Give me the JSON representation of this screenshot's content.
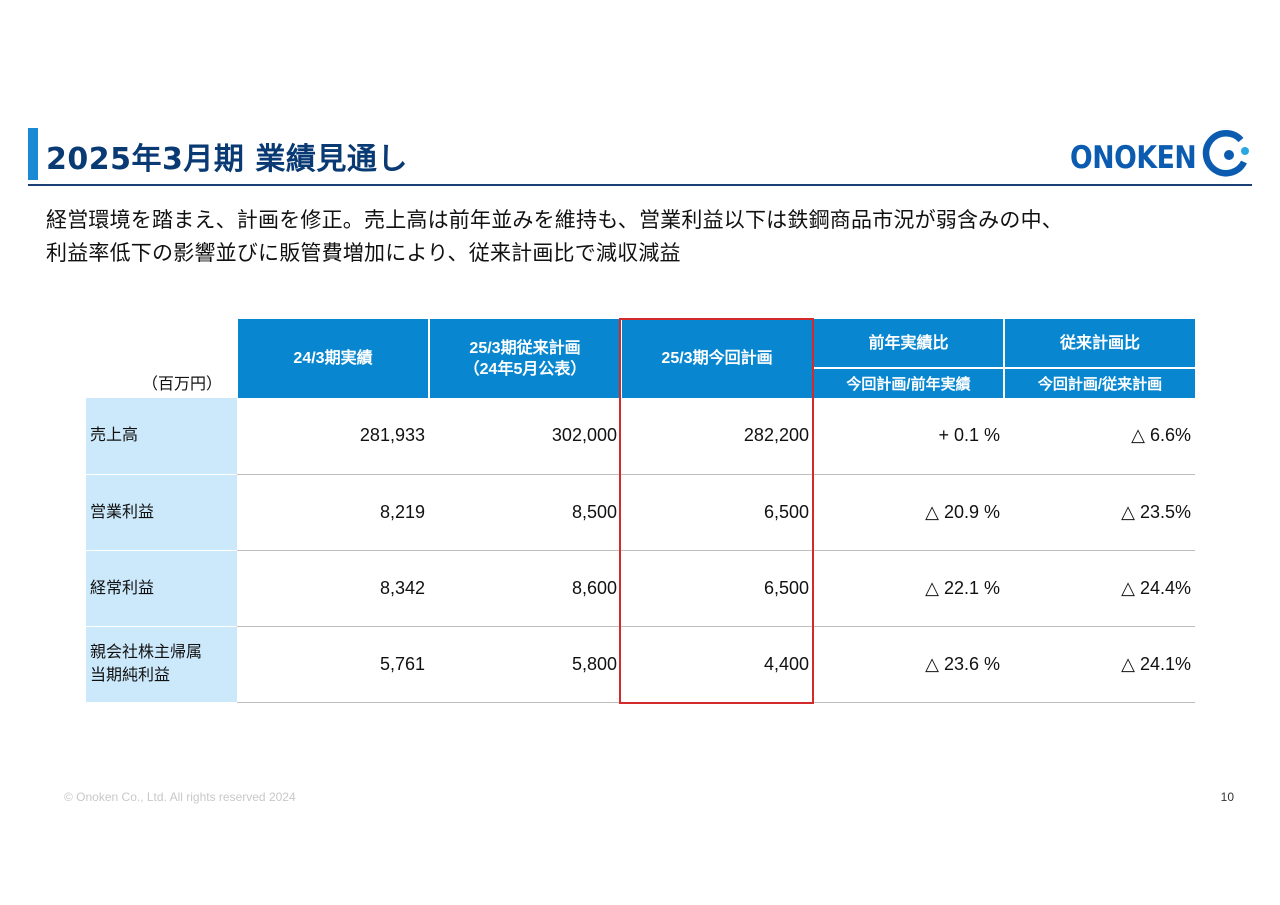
{
  "header": {
    "title": "2025年3月期 業績見通し",
    "logo_text": "ONOKEN"
  },
  "lead": {
    "line1": "経営環境を踏まえ、計画を修正。売上高は前年並みを維持も、営業利益以下は鉄鋼商品市況が弱含みの中、",
    "line2": "利益率低下の影響並びに販管費増加により、従来計画比で減収減益"
  },
  "table": {
    "unit_label": "（百万円）",
    "columns": {
      "actual_2403": "24/3期実績",
      "prev_plan_line1": "25/3期従来計画",
      "prev_plan_line2": "（24年5月公表）",
      "current_plan": "25/3期今回計画",
      "yoy": "前年実績比",
      "yoy_sub": "今回計画/前年実績",
      "vs_plan": "従来計画比",
      "vs_plan_sub": "今回計画/従来計画"
    },
    "rows": [
      {
        "label_line1": "売上高",
        "label_line2": "",
        "actual": "281,933",
        "prev_plan": "302,000",
        "current_plan": "282,200",
        "yoy": "+ 0.1 %",
        "vs_plan": "△ 6.6%"
      },
      {
        "label_line1": "営業利益",
        "label_line2": "",
        "actual": "8,219",
        "prev_plan": "8,500",
        "current_plan": "6,500",
        "yoy": "△ 20.9 %",
        "vs_plan": "△ 23.5%"
      },
      {
        "label_line1": "経常利益",
        "label_line2": "",
        "actual": "8,342",
        "prev_plan": "8,600",
        "current_plan": "6,500",
        "yoy": "△ 22.1 %",
        "vs_plan": "△ 24.4%"
      },
      {
        "label_line1": "親会社株主帰属",
        "label_line2": "当期純利益",
        "actual": "5,761",
        "prev_plan": "5,800",
        "current_plan": "4,400",
        "yoy": "△ 23.6 %",
        "vs_plan": "△ 24.1%"
      }
    ]
  },
  "footer": {
    "copyright": "© Onoken Co., Ltd. All rights reserved 2024",
    "page_number": "10"
  },
  "colors": {
    "accent": "#1a8ad4",
    "title": "#0a3a74",
    "header_fill": "#0887d0",
    "row_label_fill": "#cce9fb",
    "highlight": "#d42a2a"
  }
}
